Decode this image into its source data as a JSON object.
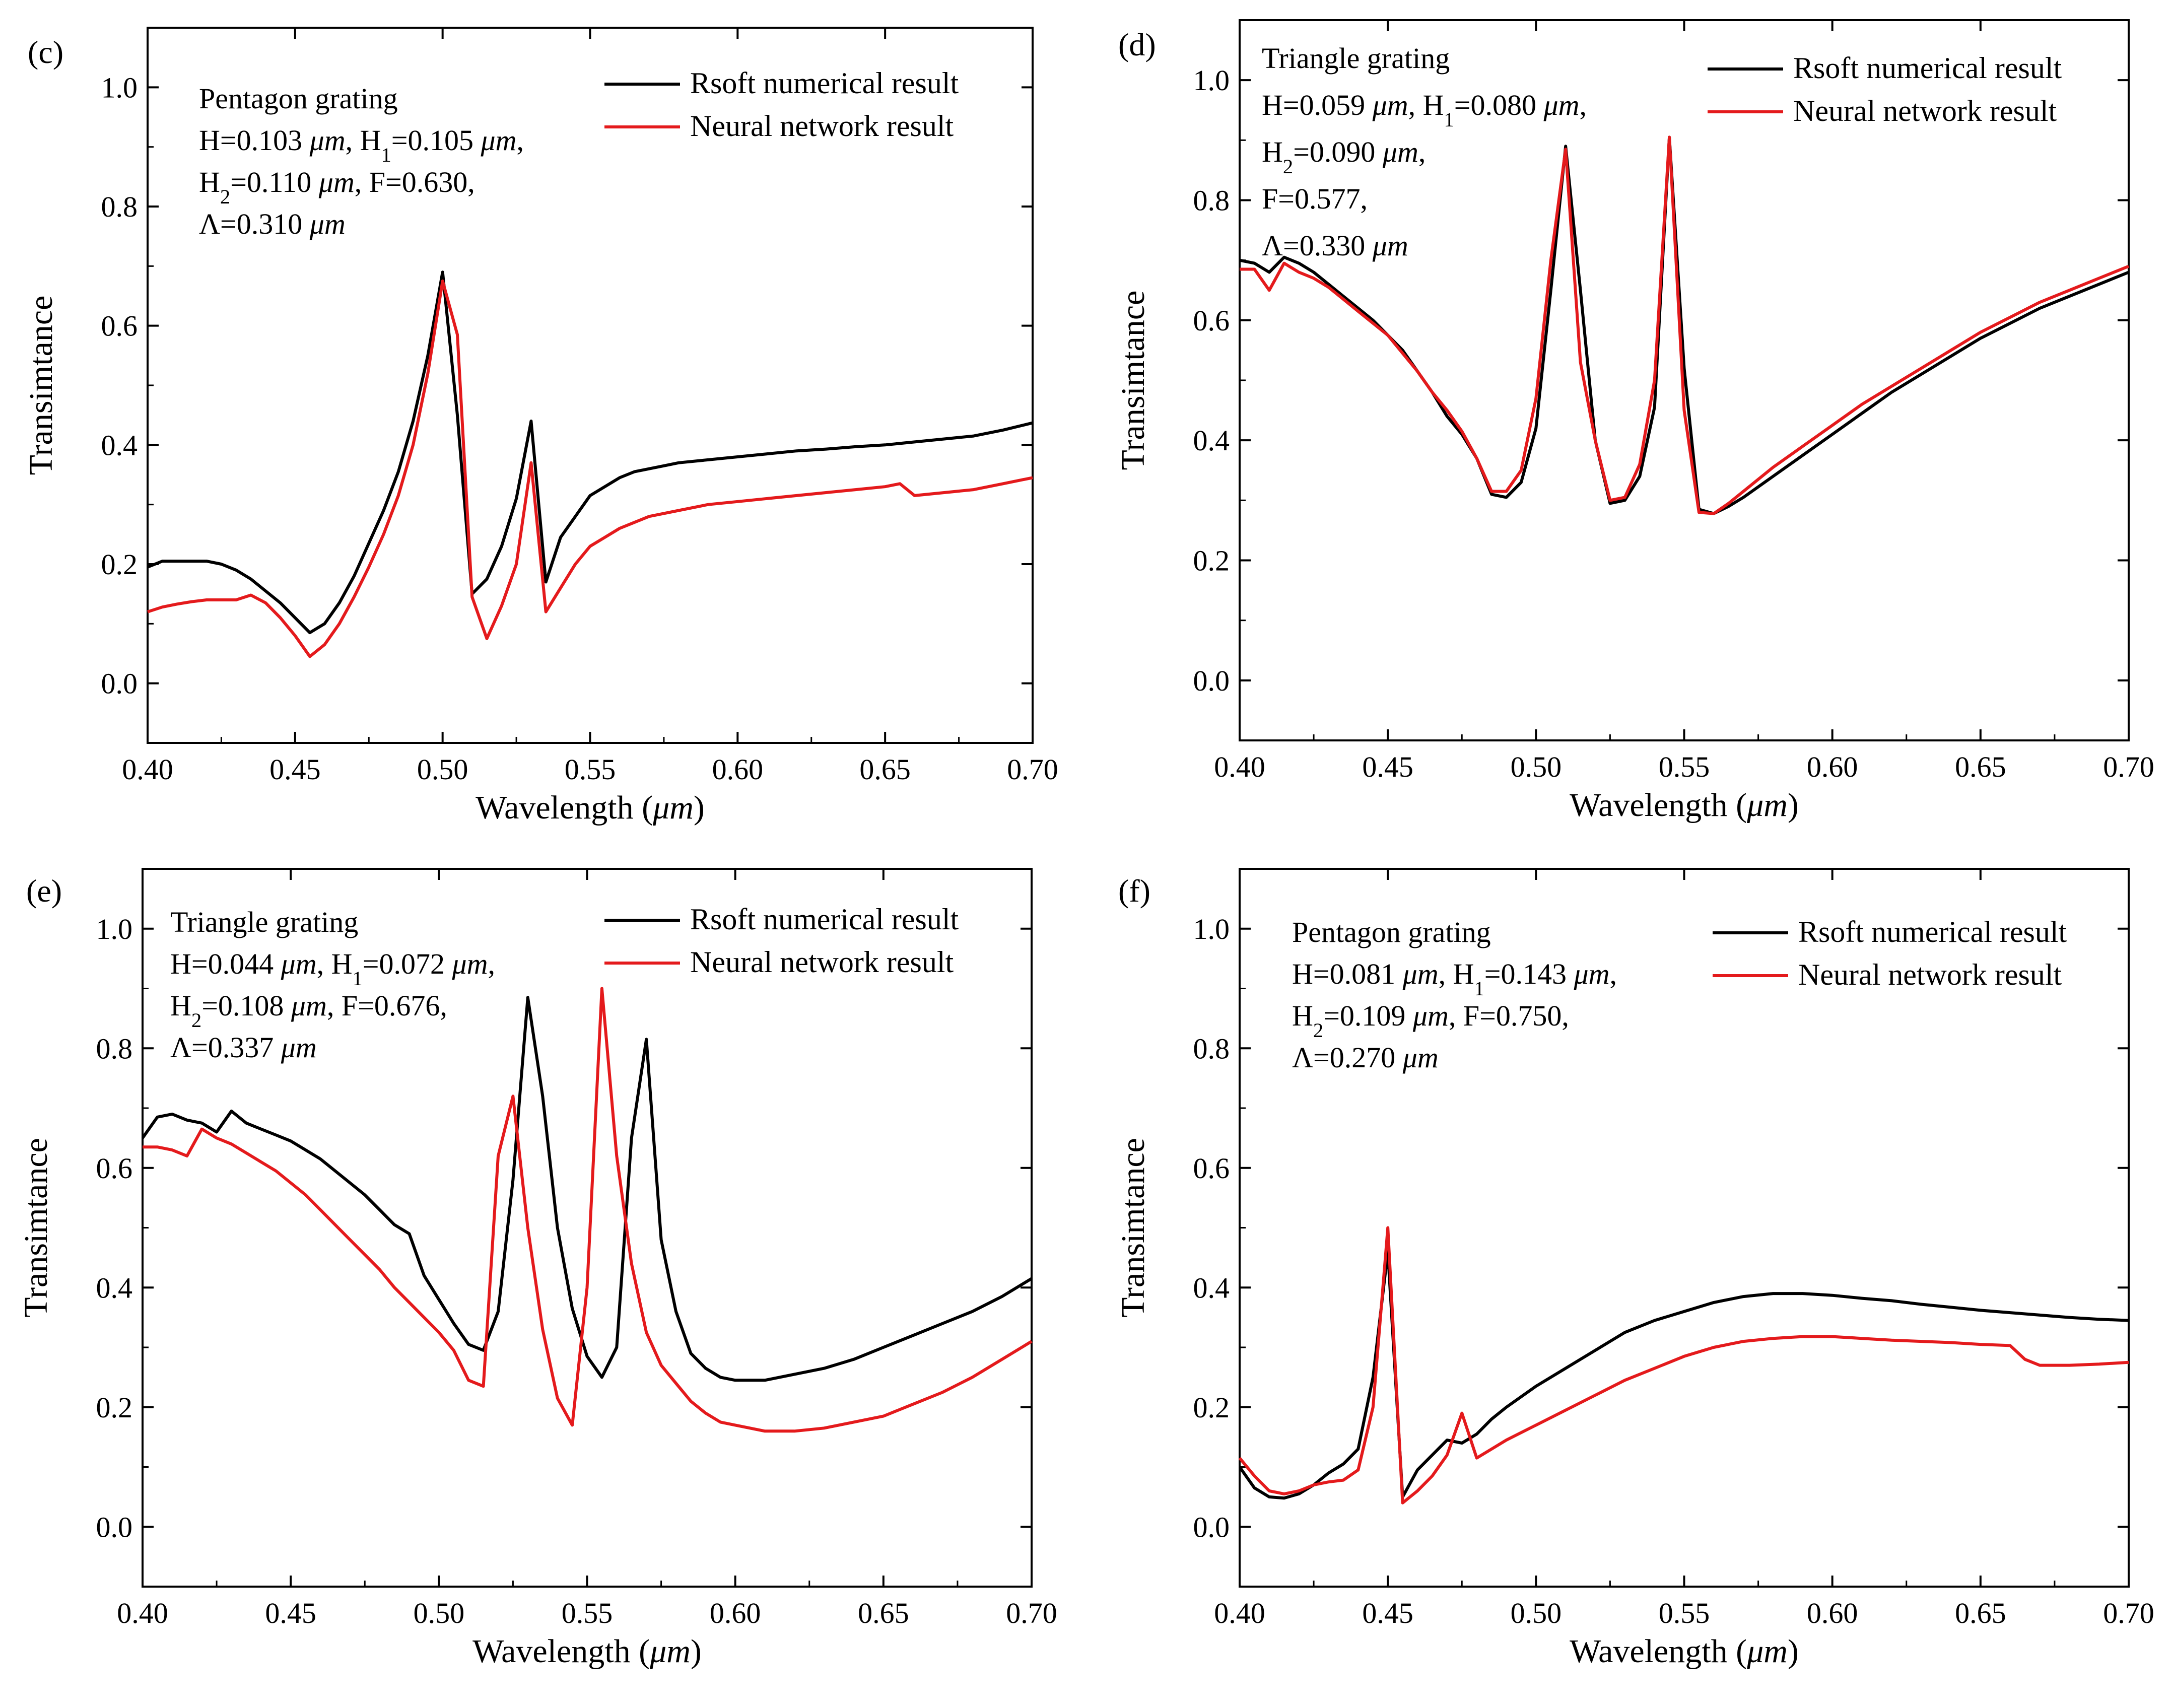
{
  "figure": {
    "colors": {
      "rsoft": "#000000",
      "neural": "#e41a1c",
      "frame": "#000000"
    }
  },
  "chart_data": [
    {
      "type": "line",
      "panel_label": "(c)",
      "xlabel": "Wavelength",
      "xlabel_unit": "μm",
      "ylabel": "Transimtance",
      "xlim": [
        0.4,
        0.7
      ],
      "ylim": [
        -0.1,
        1.1
      ],
      "xticks": [
        "0.40",
        "0.45",
        "0.50",
        "0.55",
        "0.60",
        "0.65",
        "0.70"
      ],
      "yticks": [
        "0.0",
        "0.2",
        "0.4",
        "0.6",
        "0.8",
        "1.0"
      ],
      "legend": [
        "Rsoft numerical result",
        "Neural network result"
      ],
      "legend_position": "top-right",
      "annotation": [
        {
          "text": "Pentagon grating"
        },
        {
          "text": "H=0.103 μm, H1=0.105 μm,"
        },
        {
          "text": "H2=0.110 μm, F=0.630,"
        },
        {
          "text": "Λ=0.310 μm"
        }
      ],
      "series": [
        {
          "name": "Rsoft numerical result",
          "x": [
            0.4,
            0.405,
            0.41,
            0.415,
            0.42,
            0.425,
            0.43,
            0.435,
            0.44,
            0.445,
            0.45,
            0.455,
            0.46,
            0.465,
            0.47,
            0.475,
            0.48,
            0.485,
            0.49,
            0.495,
            0.5,
            0.505,
            0.51,
            0.515,
            0.52,
            0.525,
            0.53,
            0.535,
            0.54,
            0.545,
            0.55,
            0.555,
            0.56,
            0.565,
            0.57,
            0.575,
            0.58,
            0.59,
            0.6,
            0.61,
            0.62,
            0.63,
            0.64,
            0.65,
            0.66,
            0.67,
            0.68,
            0.69,
            0.7
          ],
          "values": [
            0.195,
            0.205,
            0.205,
            0.205,
            0.205,
            0.2,
            0.19,
            0.175,
            0.155,
            0.135,
            0.11,
            0.085,
            0.1,
            0.135,
            0.18,
            0.235,
            0.29,
            0.355,
            0.44,
            0.55,
            0.69,
            0.45,
            0.15,
            0.175,
            0.23,
            0.31,
            0.44,
            0.17,
            0.245,
            0.28,
            0.315,
            0.33,
            0.345,
            0.355,
            0.36,
            0.365,
            0.37,
            0.375,
            0.38,
            0.385,
            0.39,
            0.393,
            0.397,
            0.4,
            0.405,
            0.41,
            0.415,
            0.425,
            0.437
          ]
        },
        {
          "name": "Neural network result",
          "x": [
            0.4,
            0.405,
            0.41,
            0.415,
            0.42,
            0.425,
            0.43,
            0.435,
            0.44,
            0.445,
            0.45,
            0.455,
            0.46,
            0.465,
            0.47,
            0.475,
            0.48,
            0.485,
            0.49,
            0.495,
            0.5,
            0.505,
            0.51,
            0.515,
            0.52,
            0.525,
            0.53,
            0.535,
            0.54,
            0.545,
            0.55,
            0.555,
            0.56,
            0.565,
            0.57,
            0.58,
            0.59,
            0.6,
            0.61,
            0.62,
            0.63,
            0.64,
            0.65,
            0.655,
            0.66,
            0.67,
            0.68,
            0.69,
            0.7
          ],
          "values": [
            0.12,
            0.128,
            0.133,
            0.137,
            0.14,
            0.14,
            0.14,
            0.148,
            0.135,
            0.11,
            0.08,
            0.045,
            0.065,
            0.1,
            0.145,
            0.195,
            0.25,
            0.315,
            0.4,
            0.52,
            0.675,
            0.585,
            0.145,
            0.075,
            0.13,
            0.2,
            0.37,
            0.12,
            0.16,
            0.2,
            0.23,
            0.245,
            0.26,
            0.27,
            0.28,
            0.29,
            0.3,
            0.305,
            0.31,
            0.315,
            0.32,
            0.325,
            0.33,
            0.335,
            0.315,
            0.32,
            0.325,
            0.335,
            0.345
          ]
        }
      ]
    },
    {
      "type": "line",
      "panel_label": "(d)",
      "xlabel": "Wavelength",
      "xlabel_unit": "μm",
      "ylabel": "Transimtance",
      "xlim": [
        0.4,
        0.7
      ],
      "ylim": [
        -0.1,
        1.1
      ],
      "xticks": [
        "0.40",
        "0.45",
        "0.50",
        "0.55",
        "0.60",
        "0.65",
        "0.70"
      ],
      "yticks": [
        "0.0",
        "0.2",
        "0.4",
        "0.6",
        "0.8",
        "1.0"
      ],
      "legend": [
        "Rsoft numerical result",
        "Neural network result"
      ],
      "legend_position": "top-right",
      "annotation": [
        {
          "text": "Triangle grating"
        },
        {
          "text": "H=0.059 μm, H1=0.080 μm,"
        },
        {
          "text": "H2=0.090 μm,"
        },
        {
          "text": "F=0.577,"
        },
        {
          "text": "Λ=0.330 μm"
        }
      ],
      "series": [
        {
          "name": "Rsoft numerical result",
          "x": [
            0.4,
            0.405,
            0.41,
            0.415,
            0.42,
            0.425,
            0.43,
            0.435,
            0.44,
            0.445,
            0.45,
            0.455,
            0.46,
            0.465,
            0.47,
            0.475,
            0.48,
            0.485,
            0.49,
            0.495,
            0.5,
            0.505,
            0.51,
            0.515,
            0.52,
            0.525,
            0.53,
            0.535,
            0.54,
            0.545,
            0.55,
            0.555,
            0.56,
            0.565,
            0.57,
            0.58,
            0.59,
            0.6,
            0.61,
            0.62,
            0.63,
            0.64,
            0.65,
            0.66,
            0.67,
            0.68,
            0.69,
            0.7
          ],
          "values": [
            0.7,
            0.695,
            0.68,
            0.705,
            0.695,
            0.68,
            0.66,
            0.64,
            0.62,
            0.6,
            0.575,
            0.55,
            0.515,
            0.48,
            0.44,
            0.41,
            0.37,
            0.31,
            0.305,
            0.33,
            0.42,
            0.65,
            0.89,
            0.65,
            0.4,
            0.295,
            0.3,
            0.34,
            0.455,
            0.905,
            0.52,
            0.285,
            0.278,
            0.29,
            0.305,
            0.34,
            0.375,
            0.41,
            0.445,
            0.48,
            0.51,
            0.54,
            0.57,
            0.595,
            0.62,
            0.64,
            0.66,
            0.68
          ]
        },
        {
          "name": "Neural network result",
          "x": [
            0.4,
            0.405,
            0.41,
            0.415,
            0.42,
            0.425,
            0.43,
            0.435,
            0.44,
            0.445,
            0.45,
            0.455,
            0.46,
            0.465,
            0.47,
            0.475,
            0.48,
            0.485,
            0.49,
            0.495,
            0.5,
            0.505,
            0.51,
            0.515,
            0.52,
            0.525,
            0.53,
            0.535,
            0.54,
            0.545,
            0.55,
            0.555,
            0.56,
            0.565,
            0.57,
            0.58,
            0.59,
            0.6,
            0.61,
            0.62,
            0.63,
            0.64,
            0.65,
            0.66,
            0.67,
            0.68,
            0.69,
            0.7
          ],
          "values": [
            0.685,
            0.685,
            0.65,
            0.695,
            0.68,
            0.67,
            0.655,
            0.635,
            0.615,
            0.595,
            0.575,
            0.545,
            0.515,
            0.48,
            0.45,
            0.415,
            0.37,
            0.315,
            0.315,
            0.35,
            0.47,
            0.7,
            0.885,
            0.53,
            0.4,
            0.3,
            0.305,
            0.36,
            0.5,
            0.905,
            0.45,
            0.28,
            0.278,
            0.295,
            0.315,
            0.355,
            0.39,
            0.425,
            0.46,
            0.49,
            0.52,
            0.55,
            0.58,
            0.605,
            0.63,
            0.65,
            0.67,
            0.69
          ]
        }
      ]
    },
    {
      "type": "line",
      "panel_label": "(e)",
      "xlabel": "Wavelength",
      "xlabel_unit": "μm",
      "ylabel": "Transimtance",
      "xlim": [
        0.4,
        0.7
      ],
      "ylim": [
        -0.1,
        1.1
      ],
      "xticks": [
        "0.40",
        "0.45",
        "0.50",
        "0.55",
        "0.60",
        "0.65",
        "0.70"
      ],
      "yticks": [
        "0.0",
        "0.2",
        "0.4",
        "0.6",
        "0.8",
        "1.0"
      ],
      "legend": [
        "Rsoft numerical result",
        "Neural network result"
      ],
      "legend_position": "top-right",
      "annotation": [
        {
          "text": "Triangle grating"
        },
        {
          "text": "H=0.044 μm, H1=0.072 μm,"
        },
        {
          "text": "H2=0.108 μm,  F=0.676,"
        },
        {
          "text": "Λ=0.337 μm"
        }
      ],
      "series": [
        {
          "name": "Rsoft numerical result",
          "x": [
            0.4,
            0.405,
            0.41,
            0.415,
            0.42,
            0.425,
            0.43,
            0.435,
            0.44,
            0.445,
            0.45,
            0.455,
            0.46,
            0.465,
            0.47,
            0.475,
            0.48,
            0.485,
            0.49,
            0.495,
            0.5,
            0.505,
            0.51,
            0.515,
            0.52,
            0.525,
            0.53,
            0.535,
            0.54,
            0.545,
            0.55,
            0.555,
            0.56,
            0.565,
            0.57,
            0.575,
            0.58,
            0.585,
            0.59,
            0.595,
            0.6,
            0.61,
            0.62,
            0.63,
            0.64,
            0.65,
            0.66,
            0.67,
            0.68,
            0.69,
            0.7
          ],
          "values": [
            0.65,
            0.685,
            0.69,
            0.68,
            0.675,
            0.66,
            0.695,
            0.675,
            0.665,
            0.655,
            0.645,
            0.63,
            0.615,
            0.595,
            0.575,
            0.555,
            0.53,
            0.505,
            0.49,
            0.42,
            0.38,
            0.34,
            0.305,
            0.295,
            0.36,
            0.58,
            0.885,
            0.72,
            0.5,
            0.365,
            0.285,
            0.25,
            0.3,
            0.65,
            0.815,
            0.48,
            0.36,
            0.29,
            0.265,
            0.25,
            0.245,
            0.245,
            0.255,
            0.265,
            0.28,
            0.3,
            0.32,
            0.34,
            0.36,
            0.385,
            0.415
          ]
        },
        {
          "name": "Neural network result",
          "x": [
            0.4,
            0.405,
            0.41,
            0.415,
            0.42,
            0.425,
            0.43,
            0.435,
            0.44,
            0.445,
            0.45,
            0.455,
            0.46,
            0.465,
            0.47,
            0.475,
            0.48,
            0.485,
            0.49,
            0.495,
            0.5,
            0.505,
            0.51,
            0.515,
            0.52,
            0.525,
            0.53,
            0.535,
            0.54,
            0.545,
            0.55,
            0.555,
            0.56,
            0.565,
            0.57,
            0.575,
            0.58,
            0.585,
            0.59,
            0.595,
            0.6,
            0.61,
            0.62,
            0.63,
            0.64,
            0.65,
            0.66,
            0.67,
            0.68,
            0.69,
            0.7
          ],
          "values": [
            0.635,
            0.635,
            0.63,
            0.62,
            0.665,
            0.65,
            0.64,
            0.625,
            0.61,
            0.595,
            0.575,
            0.555,
            0.53,
            0.505,
            0.48,
            0.455,
            0.43,
            0.4,
            0.375,
            0.35,
            0.325,
            0.295,
            0.245,
            0.235,
            0.62,
            0.72,
            0.5,
            0.33,
            0.215,
            0.17,
            0.4,
            0.9,
            0.62,
            0.44,
            0.325,
            0.27,
            0.24,
            0.21,
            0.19,
            0.175,
            0.17,
            0.16,
            0.16,
            0.165,
            0.175,
            0.185,
            0.205,
            0.225,
            0.25,
            0.28,
            0.31
          ]
        }
      ]
    },
    {
      "type": "line",
      "panel_label": "(f)",
      "xlabel": "Wavelength",
      "xlabel_unit": "μm",
      "ylabel": "Transimtance",
      "xlim": [
        0.4,
        0.7
      ],
      "ylim": [
        -0.1,
        1.1
      ],
      "xticks": [
        "0.40",
        "0.45",
        "0.50",
        "0.55",
        "0.60",
        "0.65",
        "0.70"
      ],
      "yticks": [
        "0.0",
        "0.2",
        "0.4",
        "0.6",
        "0.8",
        "1.0"
      ],
      "legend": [
        "Rsoft numerical result",
        "Neural network result"
      ],
      "legend_position": "top-right",
      "annotation": [
        {
          "text": "Pentagon grating"
        },
        {
          "text": "H=0.081 μm, H1=0.143 μm,"
        },
        {
          "text": "H2=0.109 μm,  F=0.750,"
        },
        {
          "text": "Λ=0.270 μm"
        }
      ],
      "series": [
        {
          "name": "Rsoft numerical result",
          "x": [
            0.4,
            0.405,
            0.41,
            0.415,
            0.42,
            0.425,
            0.43,
            0.435,
            0.44,
            0.445,
            0.45,
            0.455,
            0.46,
            0.465,
            0.47,
            0.475,
            0.48,
            0.485,
            0.49,
            0.5,
            0.51,
            0.52,
            0.53,
            0.54,
            0.55,
            0.56,
            0.57,
            0.58,
            0.59,
            0.6,
            0.61,
            0.62,
            0.63,
            0.64,
            0.65,
            0.66,
            0.67,
            0.68,
            0.69,
            0.7
          ],
          "values": [
            0.1,
            0.065,
            0.05,
            0.048,
            0.055,
            0.07,
            0.09,
            0.105,
            0.13,
            0.25,
            0.46,
            0.05,
            0.095,
            0.12,
            0.145,
            0.14,
            0.155,
            0.18,
            0.2,
            0.235,
            0.265,
            0.295,
            0.325,
            0.345,
            0.36,
            0.375,
            0.385,
            0.39,
            0.39,
            0.387,
            0.382,
            0.378,
            0.372,
            0.367,
            0.362,
            0.358,
            0.354,
            0.35,
            0.347,
            0.345
          ]
        },
        {
          "name": "Neural network result",
          "x": [
            0.4,
            0.405,
            0.41,
            0.415,
            0.42,
            0.425,
            0.43,
            0.435,
            0.44,
            0.445,
            0.45,
            0.455,
            0.46,
            0.465,
            0.47,
            0.475,
            0.48,
            0.485,
            0.49,
            0.5,
            0.51,
            0.52,
            0.53,
            0.54,
            0.55,
            0.56,
            0.57,
            0.58,
            0.59,
            0.6,
            0.61,
            0.62,
            0.63,
            0.64,
            0.65,
            0.66,
            0.665,
            0.67,
            0.68,
            0.69,
            0.7
          ],
          "values": [
            0.115,
            0.085,
            0.06,
            0.055,
            0.06,
            0.07,
            0.075,
            0.078,
            0.095,
            0.2,
            0.5,
            0.04,
            0.06,
            0.085,
            0.12,
            0.19,
            0.115,
            0.13,
            0.145,
            0.17,
            0.195,
            0.22,
            0.245,
            0.265,
            0.285,
            0.3,
            0.31,
            0.315,
            0.318,
            0.318,
            0.315,
            0.312,
            0.31,
            0.308,
            0.305,
            0.303,
            0.28,
            0.27,
            0.27,
            0.272,
            0.275
          ]
        }
      ]
    }
  ]
}
